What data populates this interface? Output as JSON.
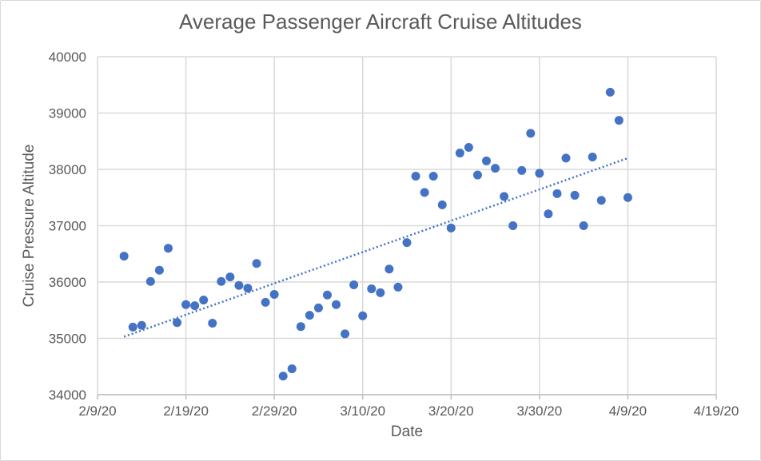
{
  "chart_data": {
    "type": "scatter",
    "title": "Average Passenger Aircraft Cruise Altitudes",
    "xlabel": "Date",
    "ylabel": "Cruise Pressure Altitude",
    "x_ticks": [
      "2/9/20",
      "2/19/20",
      "2/29/20",
      "3/10/20",
      "3/20/20",
      "3/30/20",
      "4/9/20",
      "4/19/20"
    ],
    "y_ticks": [
      "34000",
      "35000",
      "36000",
      "37000",
      "38000",
      "39000",
      "40000"
    ],
    "xlim": [
      "2020-02-09",
      "2020-04-19"
    ],
    "ylim": [
      34000,
      40000
    ],
    "grid": true,
    "marker_color": "#4472c4",
    "trendline": {
      "type": "linear",
      "style": "dotted",
      "color": "#4472c4",
      "from": [
        "2020-02-12",
        35030
      ],
      "to": [
        "2020-04-09",
        38200
      ]
    },
    "points": [
      [
        "2020-02-12",
        36460
      ],
      [
        "2020-02-13",
        35200
      ],
      [
        "2020-02-14",
        35230
      ],
      [
        "2020-02-15",
        36010
      ],
      [
        "2020-02-16",
        36210
      ],
      [
        "2020-02-17",
        36600
      ],
      [
        "2020-02-18",
        35280
      ],
      [
        "2020-02-19",
        35600
      ],
      [
        "2020-02-20",
        35580
      ],
      [
        "2020-02-21",
        35680
      ],
      [
        "2020-02-22",
        35270
      ],
      [
        "2020-02-23",
        36010
      ],
      [
        "2020-02-24",
        36090
      ],
      [
        "2020-02-25",
        35940
      ],
      [
        "2020-02-26",
        35890
      ],
      [
        "2020-02-27",
        36330
      ],
      [
        "2020-02-28",
        35640
      ],
      [
        "2020-02-29",
        35780
      ],
      [
        "2020-03-01",
        34330
      ],
      [
        "2020-03-02",
        34460
      ],
      [
        "2020-03-03",
        35210
      ],
      [
        "2020-03-04",
        35410
      ],
      [
        "2020-03-05",
        35540
      ],
      [
        "2020-03-06",
        35770
      ],
      [
        "2020-03-07",
        35600
      ],
      [
        "2020-03-08",
        35080
      ],
      [
        "2020-03-09",
        35950
      ],
      [
        "2020-03-10",
        35400
      ],
      [
        "2020-03-11",
        35880
      ],
      [
        "2020-03-12",
        35810
      ],
      [
        "2020-03-13",
        36230
      ],
      [
        "2020-03-14",
        35910
      ],
      [
        "2020-03-15",
        36700
      ],
      [
        "2020-03-16",
        37880
      ],
      [
        "2020-03-17",
        37590
      ],
      [
        "2020-03-18",
        37880
      ],
      [
        "2020-03-19",
        37370
      ],
      [
        "2020-03-20",
        36960
      ],
      [
        "2020-03-21",
        38290
      ],
      [
        "2020-03-22",
        38390
      ],
      [
        "2020-03-23",
        37900
      ],
      [
        "2020-03-24",
        38150
      ],
      [
        "2020-03-25",
        38020
      ],
      [
        "2020-03-26",
        37520
      ],
      [
        "2020-03-27",
        37000
      ],
      [
        "2020-03-28",
        37980
      ],
      [
        "2020-03-29",
        38640
      ],
      [
        "2020-03-30",
        37930
      ],
      [
        "2020-03-31",
        37210
      ],
      [
        "2020-04-01",
        37570
      ],
      [
        "2020-04-02",
        38200
      ],
      [
        "2020-04-03",
        37540
      ],
      [
        "2020-04-04",
        37000
      ],
      [
        "2020-04-05",
        38220
      ],
      [
        "2020-04-06",
        37450
      ],
      [
        "2020-04-07",
        39370
      ],
      [
        "2020-04-08",
        38870
      ],
      [
        "2020-04-09",
        37500
      ]
    ]
  }
}
